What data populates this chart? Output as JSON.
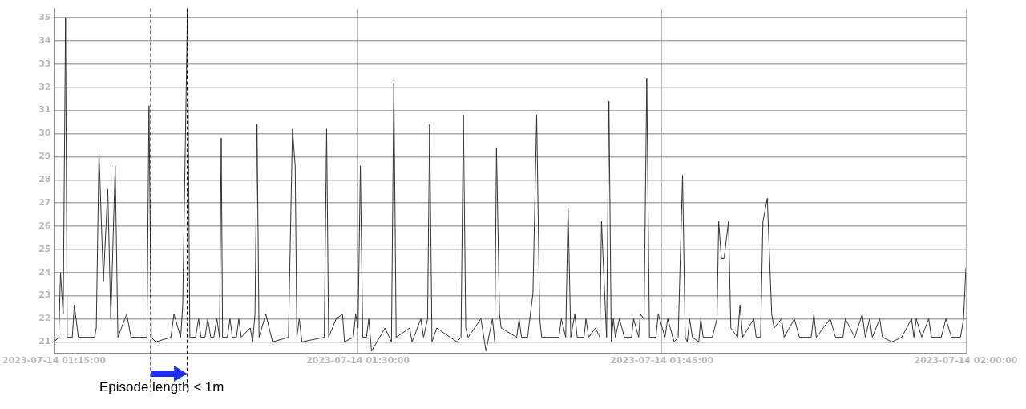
{
  "chart_data": {
    "type": "line",
    "x": [
      "2023-07-14T01:15:00",
      "2023-07-14T01:15:14",
      "2023-07-14T01:15:19",
      "2023-07-14T01:15:27",
      "2023-07-14T01:15:34",
      "2023-07-14T01:15:39",
      "2023-07-14T01:15:54",
      "2023-07-14T01:16:00",
      "2023-07-14T01:16:12",
      "2023-07-14T01:17:00",
      "2023-07-14T01:17:05",
      "2023-07-14T01:17:13",
      "2023-07-14T01:17:26",
      "2023-07-14T01:17:39",
      "2023-07-14T01:17:48",
      "2023-07-14T01:18:01",
      "2023-07-14T01:18:09",
      "2023-07-14T01:18:35",
      "2023-07-14T01:18:48",
      "2023-07-14T01:19:35",
      "2023-07-14T01:19:41",
      "2023-07-14T01:19:48",
      "2023-07-14T01:20:01",
      "2023-07-14T01:20:46",
      "2023-07-14T01:20:55",
      "2023-07-14T01:21:15",
      "2023-07-14T01:21:21",
      "2023-07-14T01:21:35",
      "2023-07-14T01:21:42",
      "2023-07-14T01:21:59",
      "2023-07-14T01:22:08",
      "2023-07-14T01:22:15",
      "2023-07-14T01:22:27",
      "2023-07-14T01:22:35",
      "2023-07-14T01:22:44",
      "2023-07-14T01:22:53",
      "2023-07-14T01:23:02",
      "2023-07-14T01:23:10",
      "2023-07-14T01:23:15",
      "2023-07-14T01:23:19",
      "2023-07-14T01:23:33",
      "2023-07-14T01:23:41",
      "2023-07-14T01:23:48",
      "2023-07-14T01:24:00",
      "2023-07-14T01:24:07",
      "2023-07-14T01:24:14",
      "2023-07-14T01:24:34",
      "2023-07-14T01:24:41",
      "2023-07-14T01:24:48",
      "2023-07-14T01:24:55",
      "2023-07-14T01:25:01",
      "2023-07-14T01:25:07",
      "2023-07-14T01:25:27",
      "2023-07-14T01:25:47",
      "2023-07-14T01:26:34",
      "2023-07-14T01:26:46",
      "2023-07-14T01:26:54",
      "2023-07-14T01:26:59",
      "2023-07-14T01:27:06",
      "2023-07-14T01:27:14",
      "2023-07-14T01:28:20",
      "2023-07-14T01:28:27",
      "2023-07-14T01:28:33",
      "2023-07-14T01:28:55",
      "2023-07-14T01:29:14",
      "2023-07-14T01:29:20",
      "2023-07-14T01:29:46",
      "2023-07-14T01:29:53",
      "2023-07-14T01:30:00",
      "2023-07-14T01:30:07",
      "2023-07-14T01:30:14",
      "2023-07-14T01:30:25",
      "2023-07-14T01:30:32",
      "2023-07-14T01:30:40",
      "2023-07-14T01:31:20",
      "2023-07-14T01:31:39",
      "2023-07-14T01:31:46",
      "2023-07-14T01:31:53",
      "2023-07-14T01:32:33",
      "2023-07-14T01:32:40",
      "2023-07-14T01:33:06",
      "2023-07-14T01:33:14",
      "2023-07-14T01:33:26",
      "2023-07-14T01:33:32",
      "2023-07-14T01:33:39",
      "2023-07-14T01:33:53",
      "2023-07-14T01:34:53",
      "2023-07-14T01:35:05",
      "2023-07-14T01:35:12",
      "2023-07-14T01:35:19",
      "2023-07-14T01:35:26",
      "2023-07-14T01:36:04",
      "2023-07-14T01:36:19",
      "2023-07-14T01:36:38",
      "2023-07-14T01:36:45",
      "2023-07-14T01:36:50",
      "2023-07-14T01:36:59",
      "2023-07-14T01:37:04",
      "2023-07-14T01:37:50",
      "2023-07-14T01:37:57",
      "2023-07-14T01:38:04",
      "2023-07-14T01:38:22",
      "2023-07-14T01:38:38",
      "2023-07-14T01:38:49",
      "2023-07-14T01:38:58",
      "2023-07-14T01:39:04",
      "2023-07-14T01:39:55",
      "2023-07-14T01:40:02",
      "2023-07-14T01:40:15",
      "2023-07-14T01:40:22",
      "2023-07-14T01:40:30",
      "2023-07-14T01:40:42",
      "2023-07-14T01:40:49",
      "2023-07-14T01:41:09",
      "2023-07-14T01:41:15",
      "2023-07-14T01:41:23",
      "2023-07-14T01:41:43",
      "2023-07-14T01:41:56",
      "2023-07-14T01:42:01",
      "2023-07-14T01:42:16",
      "2023-07-14T01:42:23",
      "2023-07-14T01:42:30",
      "2023-07-14T01:42:36",
      "2023-07-14T01:42:42",
      "2023-07-14T01:42:54",
      "2023-07-14T01:43:09",
      "2023-07-14T01:43:30",
      "2023-07-14T01:43:36",
      "2023-07-14T01:43:51",
      "2023-07-14T01:43:56",
      "2023-07-14T01:44:07",
      "2023-07-14T01:44:15",
      "2023-07-14T01:44:23",
      "2023-07-14T01:44:42",
      "2023-07-14T01:44:49",
      "2023-07-14T01:45:09",
      "2023-07-14T01:45:17",
      "2023-07-14T01:45:36",
      "2023-07-14T01:45:48",
      "2023-07-14T01:46:01",
      "2023-07-14T01:46:09",
      "2023-07-14T01:46:15",
      "2023-07-14T01:46:22",
      "2023-07-14T01:46:30",
      "2023-07-14T01:46:49",
      "2023-07-14T01:46:55",
      "2023-07-14T01:47:02",
      "2023-07-14T01:47:29",
      "2023-07-14T01:47:43",
      "2023-07-14T01:47:48",
      "2023-07-14T01:47:56",
      "2023-07-14T01:48:04",
      "2023-07-14T01:48:17",
      "2023-07-14T01:48:24",
      "2023-07-14T01:48:44",
      "2023-07-14T01:48:51",
      "2023-07-14T01:48:59",
      "2023-07-14T01:49:32",
      "2023-07-14T01:49:39",
      "2023-07-14T01:49:52",
      "2023-07-14T01:49:59",
      "2023-07-14T01:50:12",
      "2023-07-14T01:50:25",
      "2023-07-14T01:50:32",
      "2023-07-14T01:50:54",
      "2023-07-14T01:51:02",
      "2023-07-14T01:51:32",
      "2023-07-14T01:51:47",
      "2023-07-14T01:52:22",
      "2023-07-14T01:52:30",
      "2023-07-14T01:52:37",
      "2023-07-14T01:53:18",
      "2023-07-14T01:53:34",
      "2023-07-14T01:53:56",
      "2023-07-14T01:54:03",
      "2023-07-14T01:54:31",
      "2023-07-14T01:54:53",
      "2023-07-14T01:55:02",
      "2023-07-14T01:55:15",
      "2023-07-14T01:55:23",
      "2023-07-14T01:55:45",
      "2023-07-14T01:55:53",
      "2023-07-14T01:56:21",
      "2023-07-14T01:56:50",
      "2023-07-14T01:57:19",
      "2023-07-14T01:57:26",
      "2023-07-14T01:57:33",
      "2023-07-14T01:57:49",
      "2023-07-14T01:58:10",
      "2023-07-14T01:58:18",
      "2023-07-14T01:58:47",
      "2023-07-14T01:59:01",
      "2023-07-14T01:59:17",
      "2023-07-14T01:59:44",
      "2023-07-14T01:59:53",
      "2023-07-14T02:00:00"
    ],
    "series": [
      {
        "color": "#333333",
        "values": [
          21.0,
          21.2,
          24.0,
          22.2,
          35.0,
          21.2,
          21.2,
          22.6,
          21.2,
          21.2,
          21.6,
          29.2,
          23.6,
          27.6,
          22.0,
          28.6,
          21.2,
          22.2,
          21.2,
          21.2,
          31.2,
          21.2,
          21.0,
          21.2,
          22.2,
          21.2,
          22.6,
          35.3,
          21.2,
          21.2,
          22.0,
          21.2,
          21.2,
          22.0,
          21.2,
          21.2,
          22.0,
          21.2,
          29.8,
          21.2,
          21.2,
          22.0,
          21.2,
          21.2,
          22.0,
          21.2,
          21.5,
          21.6,
          21.0,
          22.2,
          30.4,
          21.2,
          22.2,
          21.0,
          21.2,
          30.2,
          28.6,
          21.2,
          22.0,
          21.0,
          21.2,
          30.2,
          21.2,
          22.0,
          22.2,
          21.0,
          21.2,
          22.2,
          21.6,
          28.6,
          21.2,
          21.2,
          22.0,
          20.6,
          21.6,
          21.0,
          32.2,
          21.2,
          21.6,
          21.0,
          22.0,
          21.2,
          22.0,
          30.4,
          21.0,
          21.6,
          21.0,
          21.2,
          30.8,
          21.6,
          21.2,
          22.0,
          20.6,
          22.0,
          21.0,
          29.4,
          22.2,
          21.6,
          21.2,
          22.0,
          21.2,
          21.2,
          23.1,
          30.8,
          22.0,
          21.2,
          21.2,
          22.0,
          21.2,
          26.8,
          21.2,
          22.2,
          21.2,
          21.2,
          22.0,
          21.2,
          21.6,
          21.2,
          26.2,
          21.2,
          31.4,
          21.0,
          22.0,
          21.2,
          22.0,
          21.2,
          21.2,
          22.0,
          21.2,
          22.2,
          22.0,
          32.4,
          21.2,
          21.2,
          22.2,
          21.2,
          22.0,
          21.0,
          21.2,
          28.2,
          21.2,
          21.0,
          22.0,
          21.2,
          21.0,
          22.0,
          21.2,
          21.2,
          22.0,
          26.2,
          24.6,
          24.6,
          26.2,
          21.6,
          21.2,
          22.6,
          21.2,
          22.0,
          21.2,
          21.2,
          26.2,
          27.2,
          22.2,
          21.6,
          22.0,
          21.2,
          22.0,
          21.2,
          21.2,
          22.2,
          21.2,
          22.0,
          21.2,
          21.2,
          22.0,
          21.2,
          22.2,
          21.2,
          22.0,
          21.2,
          22.0,
          21.2,
          21.0,
          21.2,
          22.0,
          21.2,
          22.0,
          21.2,
          22.0,
          21.2,
          21.2,
          22.0,
          21.2,
          21.2,
          22.0,
          24.2
        ]
      }
    ],
    "xlim": [
      "2023-07-14T01:15:00",
      "2023-07-14T02:00:00"
    ],
    "xticks": [
      {
        "value": "2023-07-14T01:15:00",
        "label": "2023-07-14 01:15:00"
      },
      {
        "value": "2023-07-14T01:30:00",
        "label": "2023-07-14 01:30:00"
      },
      {
        "value": "2023-07-14T01:45:00",
        "label": "2023-07-14 01:45:00"
      },
      {
        "value": "2023-07-14T02:00:00",
        "label": "2023-07-14 02:00:00"
      }
    ],
    "ylim": [
      20.5,
      35.4
    ],
    "yticks": [
      21,
      22,
      23,
      24,
      25,
      26,
      27,
      28,
      29,
      30,
      31,
      32,
      33,
      34,
      35
    ],
    "grid": true,
    "legend": false,
    "marker": "none",
    "line_style": "solid",
    "ref_lines": [
      {
        "axis": "x",
        "value": "2023-07-14T01:19:46",
        "color": "#000000",
        "line_style": "dashed"
      },
      {
        "axis": "x",
        "value": "2023-07-14T01:21:34",
        "color": "#000000",
        "line_style": "dashed"
      }
    ],
    "annotations": [
      "Episode length < 1m"
    ]
  }
}
